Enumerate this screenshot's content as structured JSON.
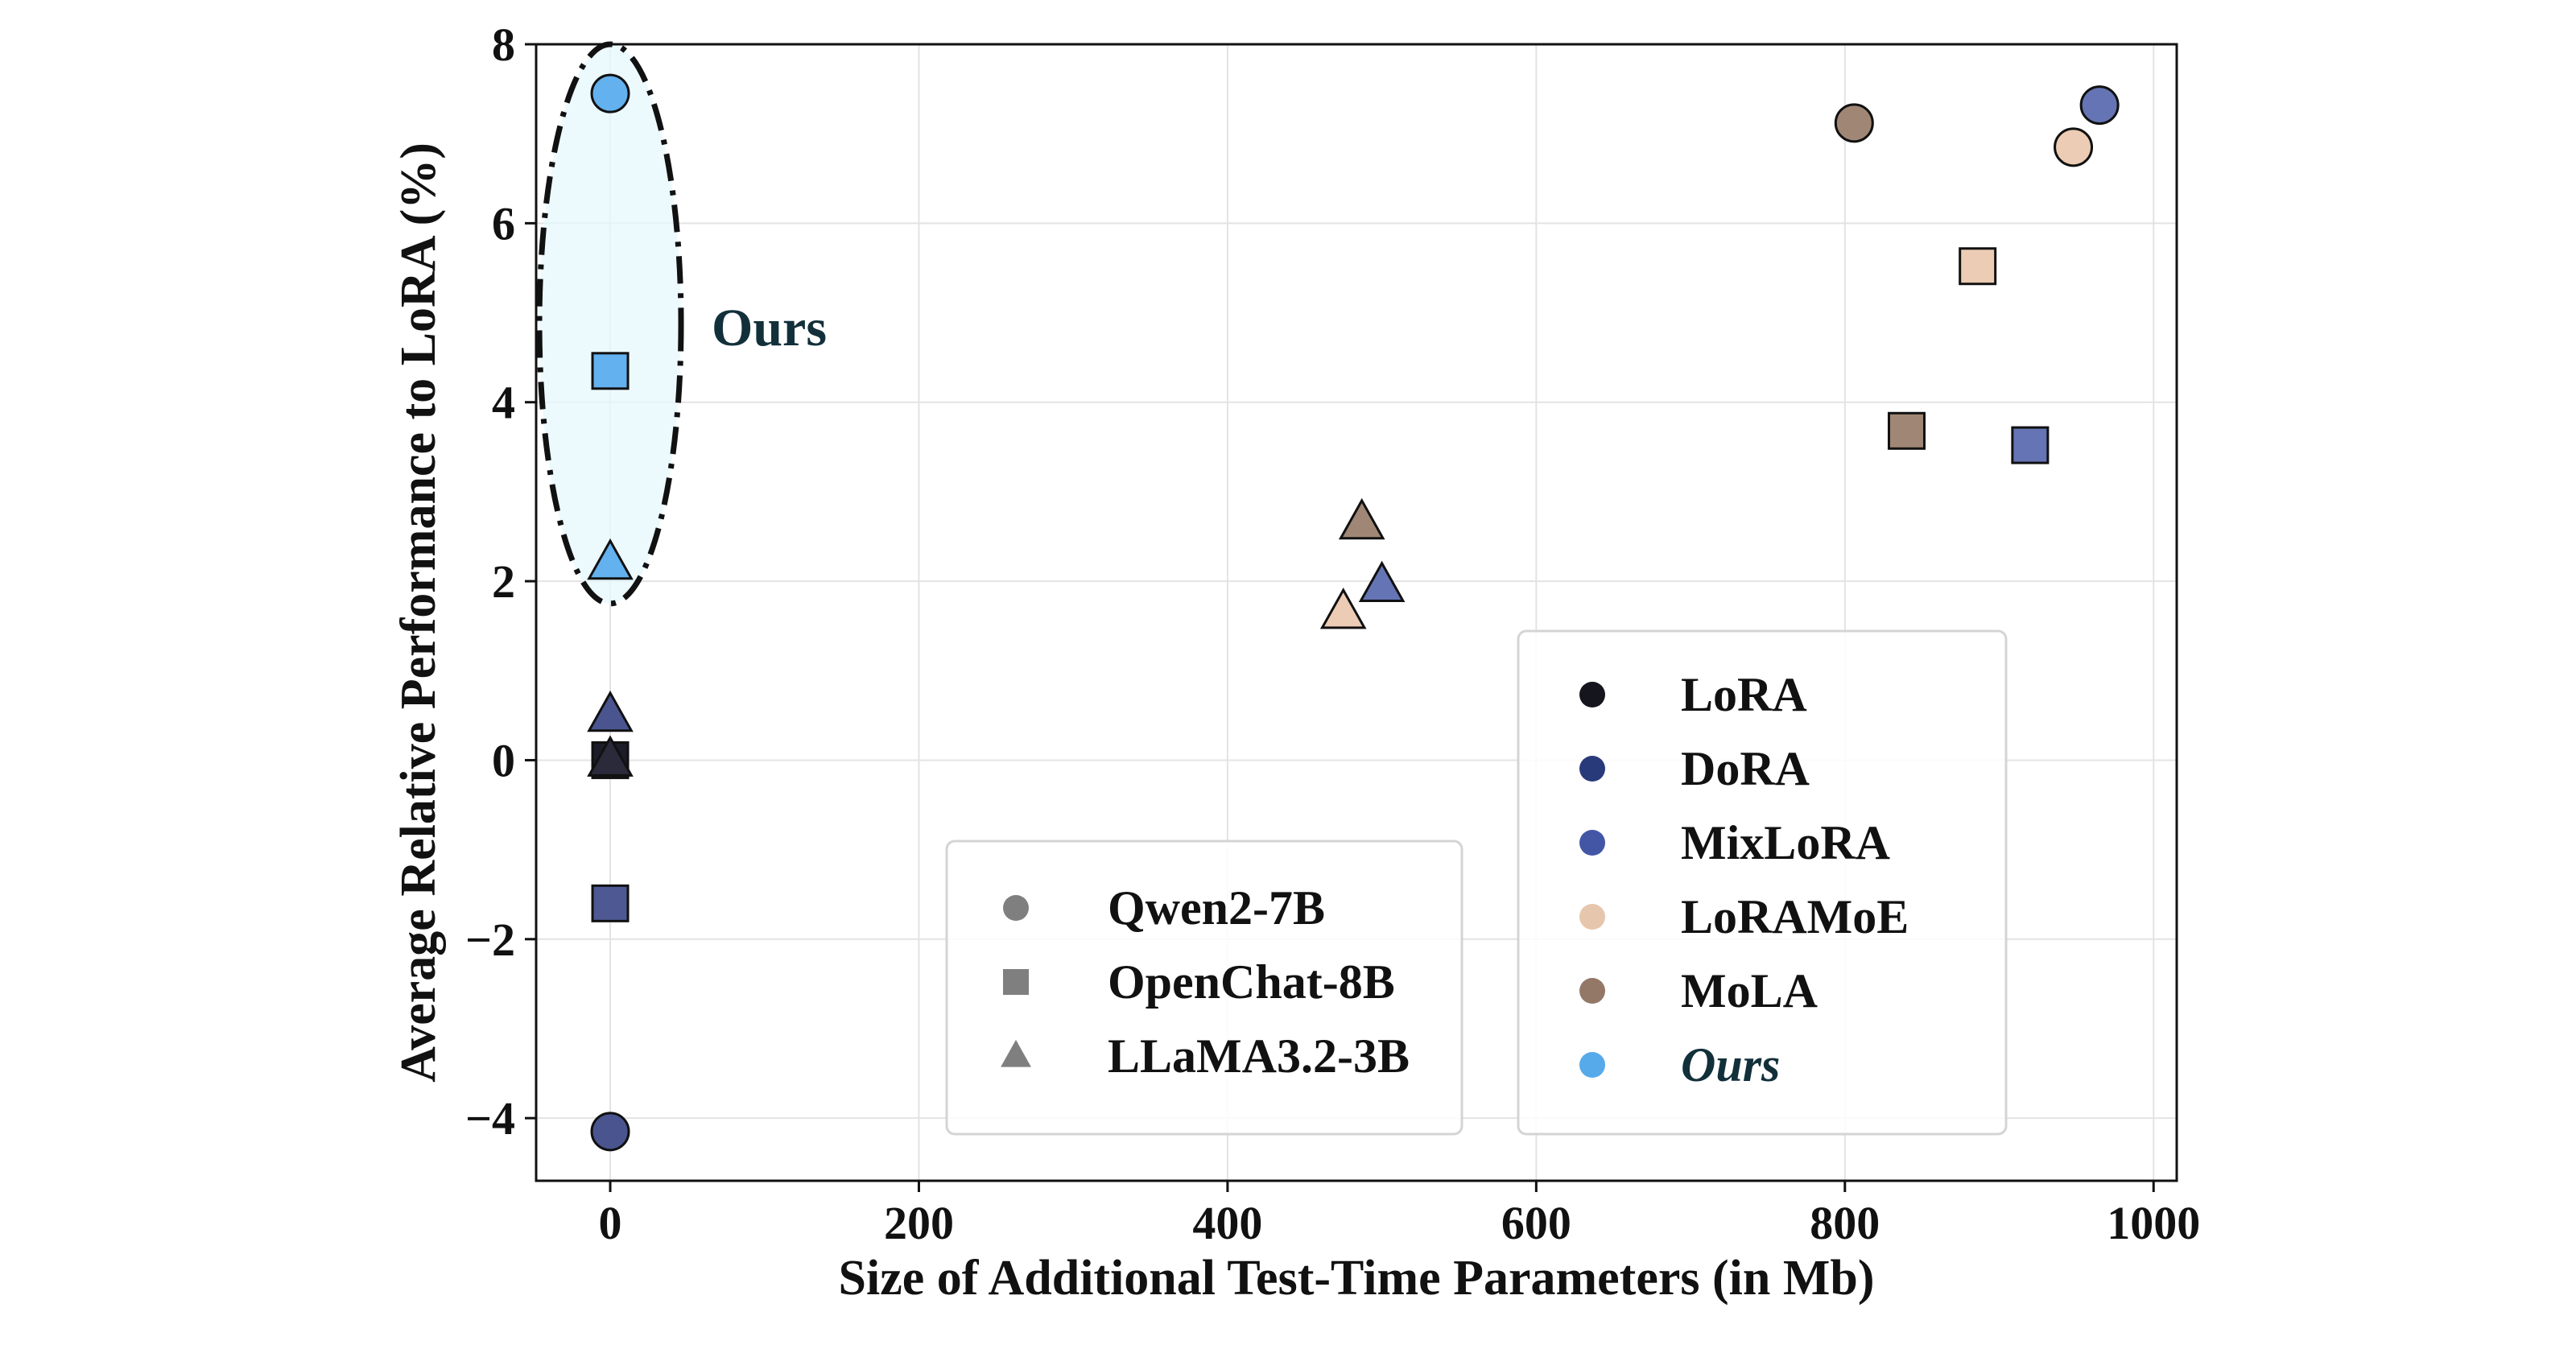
{
  "chart_data": {
    "type": "scatter",
    "title": "",
    "xlabel": "Size of Additional Test-Time Parameters (in Mb)",
    "ylabel": "Average Relative Performance to LoRA (%)",
    "xlim": [
      -48,
      1015
    ],
    "ylim": [
      -4.7,
      8.0
    ],
    "xticks": [
      0,
      200,
      400,
      600,
      800,
      1000
    ],
    "xtick_labels": [
      "0",
      "200",
      "400",
      "600",
      "800",
      "1000"
    ],
    "yticks": [
      8,
      6,
      4,
      2,
      0,
      -2,
      -4
    ],
    "ytick_labels": [
      "8",
      "6",
      "4",
      "2",
      "0",
      "−2",
      "−4"
    ],
    "grid": true,
    "annotation": {
      "text": "Ours",
      "x": 0,
      "y_range": [
        1.75,
        8.0
      ]
    },
    "method_colors": {
      "LoRA": "#15151e",
      "DoRA": "#283a7a",
      "MixLoRA": "#4356a6",
      "LoRAMoE": "#e6c6ad",
      "MoLA": "#937868",
      "Ours": "#56aaea"
    },
    "points": [
      {
        "method": "Ours",
        "model": "Qwen2-7B",
        "x": 0,
        "y": 7.45,
        "color": "#63b1ee"
      },
      {
        "method": "Ours",
        "model": "OpenChat-8B",
        "x": 0,
        "y": 4.35,
        "color": "#63b1ee"
      },
      {
        "method": "Ours",
        "model": "LLaMA3.2-3B",
        "x": 0,
        "y": 2.2,
        "color": "#63b1ee"
      },
      {
        "method": "DoRA",
        "model": "LLaMA3.2-3B",
        "x": 0,
        "y": 0.5,
        "color": "#4a5590"
      },
      {
        "method": "LoRA",
        "model": "OpenChat-8B",
        "x": 0,
        "y": 0.0,
        "color": "#1c1c2a"
      },
      {
        "method": "LoRA",
        "model": "LLaMA3.2-3B",
        "x": 0,
        "y": 0.0,
        "color": "#2a2a3a"
      },
      {
        "method": "DoRA",
        "model": "OpenChat-8B",
        "x": 0,
        "y": -1.6,
        "color": "#4e5892"
      },
      {
        "method": "DoRA",
        "model": "Qwen2-7B",
        "x": 0,
        "y": -4.15,
        "color": "#4a5590"
      },
      {
        "method": "LoRAMoE",
        "model": "LLaMA3.2-3B",
        "x": 475,
        "y": 1.65,
        "color": "#ecccb4"
      },
      {
        "method": "MoLA",
        "model": "LLaMA3.2-3B",
        "x": 487,
        "y": 2.65,
        "color": "#a08775"
      },
      {
        "method": "MixLoRA",
        "model": "LLaMA3.2-3B",
        "x": 500,
        "y": 1.95,
        "color": "#6574b4"
      },
      {
        "method": "MoLA",
        "model": "Qwen2-7B",
        "x": 806,
        "y": 7.12,
        "color": "#a08775"
      },
      {
        "method": "MoLA",
        "model": "OpenChat-8B",
        "x": 840,
        "y": 3.68,
        "color": "#a08775"
      },
      {
        "method": "LoRAMoE",
        "model": "OpenChat-8B",
        "x": 886,
        "y": 5.52,
        "color": "#ecccb4"
      },
      {
        "method": "MixLoRA",
        "model": "OpenChat-8B",
        "x": 920,
        "y": 3.52,
        "color": "#6574b4"
      },
      {
        "method": "LoRAMoE",
        "model": "Qwen2-7B",
        "x": 948,
        "y": 6.85,
        "color": "#ecccb4"
      },
      {
        "method": "MixLoRA",
        "model": "Qwen2-7B",
        "x": 965,
        "y": 7.32,
        "color": "#6574b4"
      }
    ],
    "legend_models": [
      {
        "label": "Qwen2-7B",
        "marker": "circle"
      },
      {
        "label": "OpenChat-8B",
        "marker": "square"
      },
      {
        "label": "LLaMA3.2-3B",
        "marker": "triangle"
      }
    ],
    "legend_methods": [
      {
        "label": "LoRA",
        "color": "#15151e"
      },
      {
        "label": "DoRA",
        "color": "#283a7a"
      },
      {
        "label": "MixLoRA",
        "color": "#4356a6"
      },
      {
        "label": "LoRAMoE",
        "color": "#e6c6ad"
      },
      {
        "label": "MoLA",
        "color": "#937868"
      },
      {
        "label": "Ours",
        "color": "#56aaea"
      }
    ],
    "legend_placement": [
      "bottom-center",
      "bottom-right"
    ]
  }
}
